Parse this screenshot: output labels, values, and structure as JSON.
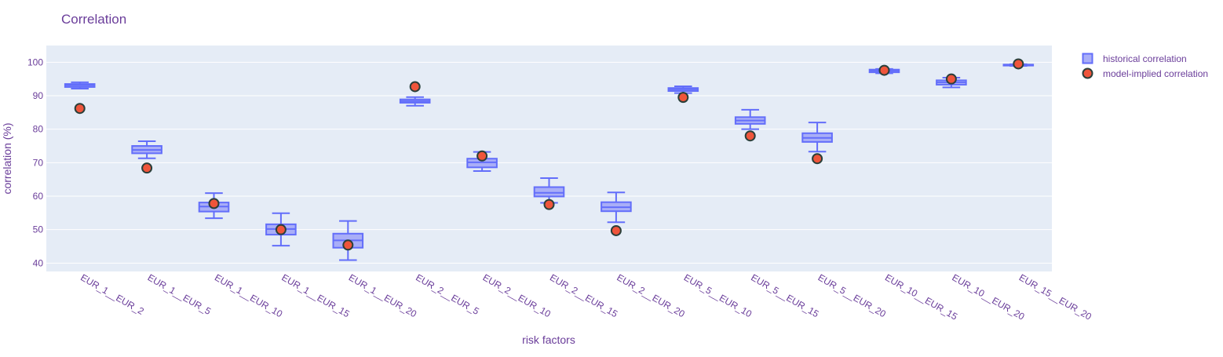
{
  "chart_data": {
    "type": "box",
    "title": "Correlation",
    "xlabel": "risk factors",
    "ylabel": "correlation (%)",
    "ylim": [
      37.5,
      105
    ],
    "yticks": [
      40,
      50,
      60,
      70,
      80,
      90,
      100
    ],
    "grid": true,
    "legend_position": "top-right",
    "colors": {
      "text": "#6a3d9a",
      "plot_bg": "#e5ecf6",
      "grid": "#ffffff",
      "box_line": "#636efa",
      "box_fill": "#a9aef7",
      "marker_fill": "#ef553b",
      "marker_line": "#2a3f3a"
    },
    "categories": [
      "EUR_1__EUR_2",
      "EUR_1__EUR_5",
      "EUR_1__EUR_10",
      "EUR_1__EUR_15",
      "EUR_1__EUR_20",
      "EUR_2__EUR_5",
      "EUR_2__EUR_10",
      "EUR_2__EUR_15",
      "EUR_2__EUR_20",
      "EUR_5__EUR_10",
      "EUR_5__EUR_15",
      "EUR_5__EUR_20",
      "EUR_10__EUR_15",
      "EUR_10__EUR_20",
      "EUR_15__EUR_20"
    ],
    "series": [
      {
        "name": "historical correlation",
        "kind": "box",
        "boxes": [
          {
            "min": 92.1,
            "q1": 92.6,
            "median": 93.1,
            "q3": 93.5,
            "max": 94.0
          },
          {
            "min": 71.3,
            "q1": 72.8,
            "median": 73.8,
            "q3": 75.0,
            "max": 76.4
          },
          {
            "min": 53.4,
            "q1": 55.4,
            "median": 56.9,
            "q3": 58.1,
            "max": 60.9
          },
          {
            "min": 45.2,
            "q1": 48.5,
            "median": 50.2,
            "q3": 51.6,
            "max": 54.9
          },
          {
            "min": 40.9,
            "q1": 44.6,
            "median": 46.8,
            "q3": 48.8,
            "max": 52.6
          },
          {
            "min": 87.0,
            "q1": 87.9,
            "median": 88.4,
            "q3": 88.9,
            "max": 89.6
          },
          {
            "min": 67.5,
            "q1": 68.6,
            "median": 70.1,
            "q3": 71.2,
            "max": 73.2
          },
          {
            "min": 58.0,
            "q1": 59.9,
            "median": 61.0,
            "q3": 62.7,
            "max": 65.4
          },
          {
            "min": 52.2,
            "q1": 55.5,
            "median": 56.7,
            "q3": 58.2,
            "max": 61.1
          },
          {
            "min": 90.8,
            "q1": 91.4,
            "median": 91.9,
            "q3": 92.3,
            "max": 92.8
          },
          {
            "min": 80.0,
            "q1": 81.6,
            "median": 82.6,
            "q3": 83.6,
            "max": 85.8
          },
          {
            "min": 73.3,
            "q1": 76.2,
            "median": 77.4,
            "q3": 78.8,
            "max": 82.0
          },
          {
            "min": 96.7,
            "q1": 97.0,
            "median": 97.4,
            "q3": 97.8,
            "max": 98.0
          },
          {
            "min": 92.5,
            "q1": 93.3,
            "median": 94.0,
            "q3": 94.6,
            "max": 95.4
          },
          {
            "min": 98.9,
            "q1": 99.0,
            "median": 99.2,
            "q3": 99.3,
            "max": 99.4
          }
        ]
      },
      {
        "name": "model-implied correlation",
        "kind": "scatter",
        "values": [
          86.2,
          68.4,
          57.8,
          50.0,
          45.4,
          92.7,
          72.0,
          57.5,
          49.7,
          89.5,
          78.0,
          71.2,
          97.6,
          95.0,
          99.5
        ]
      }
    ]
  }
}
